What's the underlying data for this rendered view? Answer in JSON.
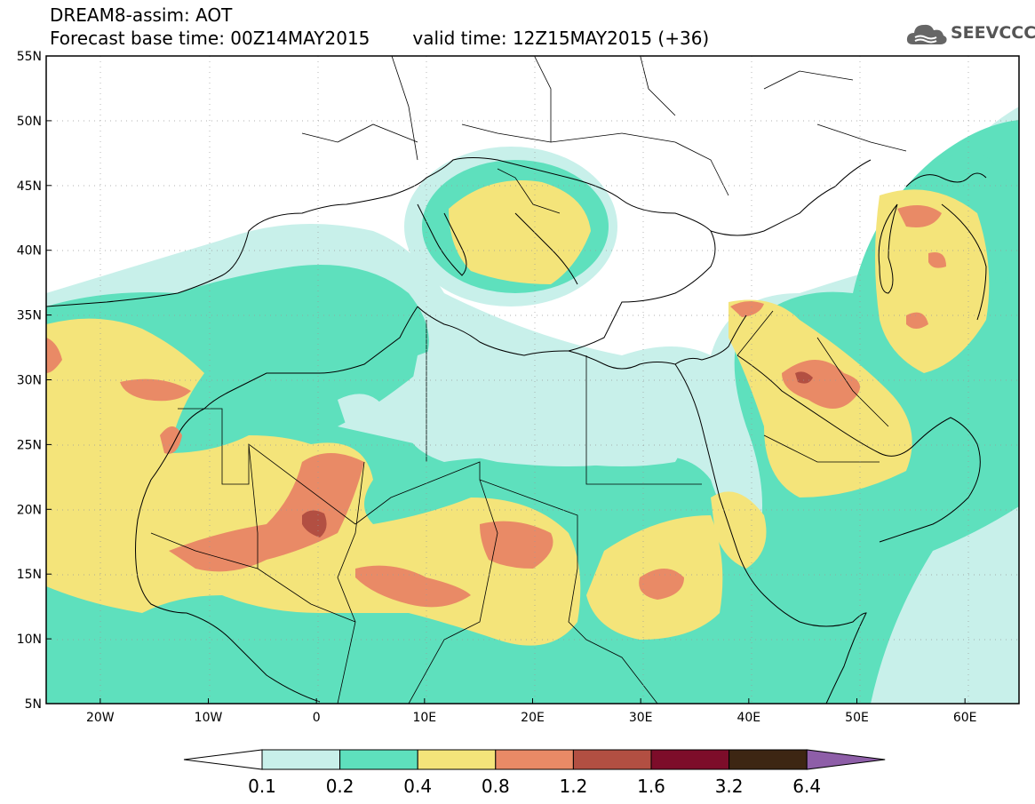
{
  "header": {
    "title": "DREAM8-assim: AOT",
    "base_time": "Forecast base time: 00Z14MAY2015",
    "valid_time": "valid time: 12Z15MAY2015 (+36)"
  },
  "logo": {
    "text": "SEEVCCC",
    "icon": "cloud-icon"
  },
  "map": {
    "lat_ticks": [
      "55N",
      "50N",
      "45N",
      "40N",
      "35N",
      "30N",
      "25N",
      "20N",
      "15N",
      "10N",
      "5N"
    ],
    "lon_ticks": [
      "20W",
      "10W",
      "0",
      "10E",
      "20E",
      "30E",
      "40E",
      "50E",
      "60E"
    ],
    "lon_range": [
      -25,
      65
    ],
    "lat_range": [
      5,
      55
    ]
  },
  "colorbar": {
    "labels": [
      "0.1",
      "0.2",
      "0.4",
      "0.8",
      "1.2",
      "1.6",
      "3.2",
      "6.4"
    ],
    "colors": [
      "#ffffff",
      "#c8f0ea",
      "#5ee0bd",
      "#f4e47a",
      "#e98a66",
      "#b24f42",
      "#7d0d2a",
      "#3d2613",
      "#8e5ea8"
    ]
  }
}
